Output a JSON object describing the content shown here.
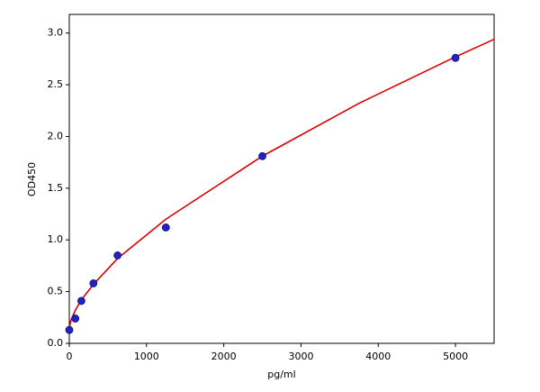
{
  "chart_data": {
    "type": "scatter",
    "x_label": "pg/ml",
    "y_label": "OD450",
    "series": [
      {
        "type": "scatter",
        "color": "#2222cc",
        "x": [
          0,
          78.125,
          156.25,
          312.5,
          625,
          1250,
          2500,
          5000
        ],
        "values": [
          0.13,
          0.24,
          0.41,
          0.58,
          0.85,
          1.12,
          1.81,
          2.76
        ]
      },
      {
        "type": "line",
        "color": "#dd0000",
        "x": [
          0,
          20,
          78,
          156,
          312,
          625,
          1250,
          2500,
          3750,
          5000,
          5500
        ],
        "values": [
          0.15,
          0.22,
          0.32,
          0.42,
          0.57,
          0.82,
          1.2,
          1.81,
          2.32,
          2.77,
          2.94
        ]
      }
    ],
    "xlim": [
      0,
      5500
    ],
    "ylim": [
      0,
      3.18
    ],
    "xticks": [
      0,
      1000,
      2000,
      3000,
      4000,
      5000
    ],
    "yticks": [
      {
        "value": 0,
        "label": "0.0"
      },
      0.5,
      {
        "value": 1,
        "label": "1.0"
      },
      1.5,
      {
        "value": 2,
        "label": "2.0"
      },
      2.5,
      {
        "value": 3,
        "label": "3.0"
      }
    ],
    "grid": false
  }
}
